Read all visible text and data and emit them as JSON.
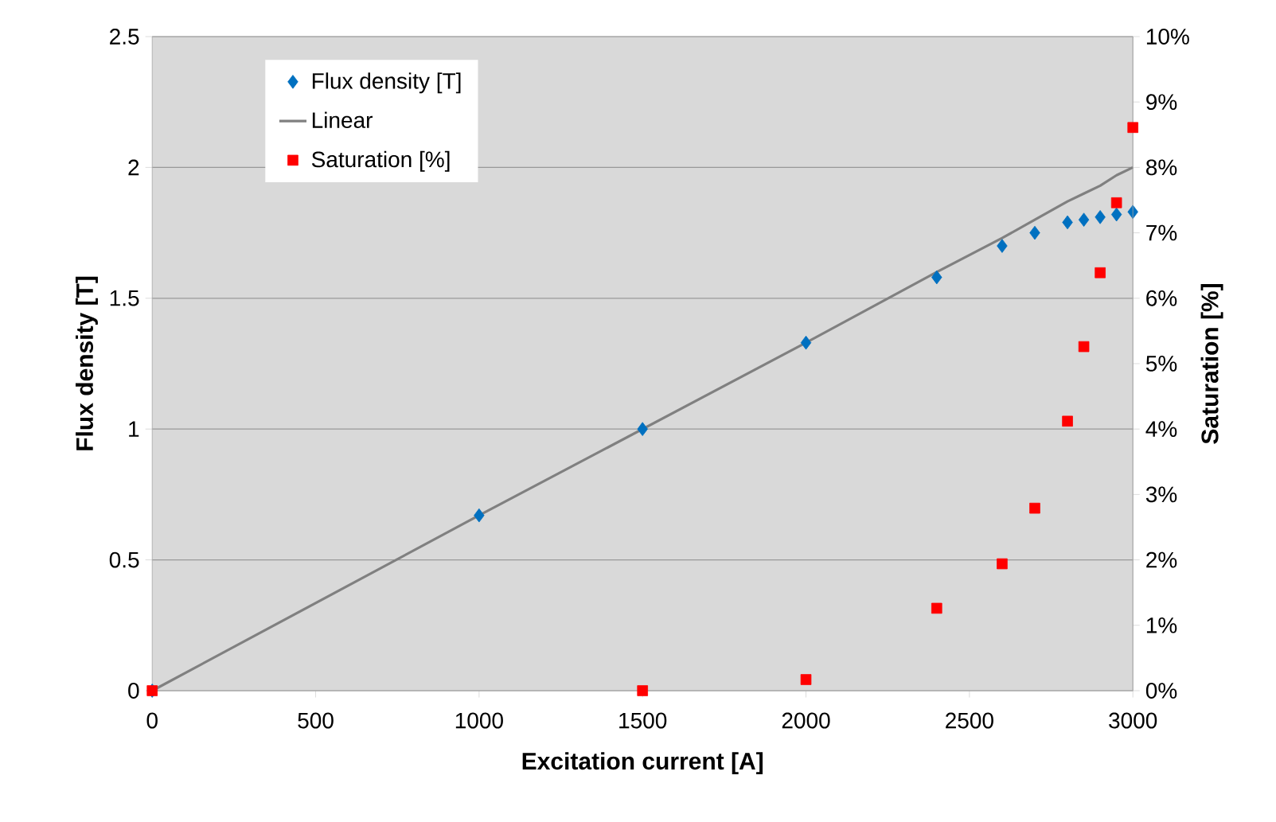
{
  "chart_data": {
    "type": "scatter",
    "xlabel": "Excitation current [A]",
    "ylabel": "Flux density [T]",
    "y2label": "Saturation [%]",
    "xlim": [
      0,
      3000
    ],
    "xticks": [
      0,
      500,
      1000,
      1500,
      2000,
      2500,
      3000
    ],
    "ylim": [
      0,
      2.5
    ],
    "yticks": [
      0,
      0.5,
      1,
      1.5,
      2,
      2.5
    ],
    "y2lim": [
      0,
      10
    ],
    "y2ticks": [
      {
        "value": 0,
        "label": "0%"
      },
      {
        "value": 1,
        "label": "1%"
      },
      {
        "value": 2,
        "label": "2%"
      },
      {
        "value": 3,
        "label": "3%"
      },
      {
        "value": 4,
        "label": "4%"
      },
      {
        "value": 5,
        "label": "5%"
      },
      {
        "value": 6,
        "label": "6%"
      },
      {
        "value": 7,
        "label": "7%"
      },
      {
        "value": 8,
        "label": "8%"
      },
      {
        "value": 9,
        "label": "9%"
      },
      {
        "value": 10,
        "label": "10%"
      }
    ],
    "grid": "y",
    "legend": "top left",
    "series": [
      {
        "name": "Flux density [T]",
        "marker": "diamond",
        "color": "#0070c0",
        "x": [
          0,
          1000,
          1500,
          2000,
          2400,
          2600,
          2700,
          2800,
          2850,
          2900,
          2950,
          3000
        ],
        "values": [
          0,
          0.67,
          1.0,
          1.33,
          1.58,
          1.7,
          1.75,
          1.79,
          1.8,
          1.81,
          1.82,
          1.83
        ]
      },
      {
        "name": "Linear",
        "type": "line",
        "color": "#808080",
        "x": [
          0,
          1000,
          1500,
          2000,
          2400,
          2600,
          2700,
          2800,
          2850,
          2900,
          2950,
          3000
        ],
        "values": [
          0,
          0.67,
          1.0,
          1.33,
          1.6,
          1.73,
          1.8,
          1.87,
          1.9,
          1.93,
          1.97,
          2.0
        ]
      },
      {
        "name": "Saturation [%]",
        "marker": "square",
        "axis": "y2",
        "color": "#ff0000",
        "x": [
          0,
          1500,
          2000,
          2400,
          2600,
          2700,
          2800,
          2850,
          2900,
          2950,
          3000
        ],
        "values": [
          0,
          0,
          0.17,
          1.26,
          1.94,
          2.79,
          4.12,
          5.26,
          6.39,
          7.46,
          8.61
        ]
      }
    ]
  }
}
